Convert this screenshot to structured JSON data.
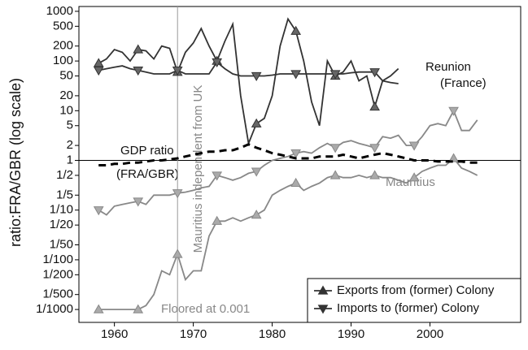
{
  "chart_data": {
    "type": "line",
    "y_label": "ratio:FRA/GBR (log scale)",
    "log_y": true,
    "x": [
      1958,
      1959,
      1960,
      1961,
      1962,
      1963,
      1964,
      1965,
      1966,
      1967,
      1968,
      1969,
      1970,
      1971,
      1972,
      1973,
      1974,
      1975,
      1976,
      1977,
      1978,
      1979,
      1980,
      1981,
      1982,
      1983,
      1984,
      1985,
      1986,
      1987,
      1988,
      1989,
      1990,
      1991,
      1992,
      1993,
      1994,
      1995,
      1996,
      1997,
      1998,
      1999,
      2000,
      2001,
      2002,
      2003,
      2004,
      2005,
      2006
    ],
    "series": [
      {
        "color": "#333333",
        "marker": "triangle-up",
        "dash": false,
        "values": [
          90,
          110,
          170,
          150,
          100,
          170,
          160,
          110,
          200,
          180,
          60,
          150,
          230,
          450,
          200,
          100,
          250,
          550,
          20,
          2.2,
          5.5,
          7,
          20,
          200,
          700,
          400,
          100,
          15,
          5,
          100,
          50,
          60,
          100,
          40,
          50,
          12,
          40,
          50,
          70,
          null,
          null,
          null,
          null,
          null,
          null,
          null,
          null,
          null,
          null
        ]
      },
      {
        "color": "#333333",
        "marker": "triangle-down",
        "dash": false,
        "values": [
          65,
          70,
          75,
          80,
          70,
          65,
          60,
          55,
          55,
          55,
          65,
          55,
          55,
          55,
          55,
          95,
          70,
          55,
          50,
          50,
          50,
          50,
          52,
          55,
          55,
          55,
          55,
          55,
          55,
          55,
          55,
          55,
          58,
          60,
          60,
          60,
          40,
          37,
          35,
          null,
          null,
          null,
          null,
          null,
          null,
          null,
          null,
          null,
          null
        ]
      },
      {
        "color": "#888888",
        "marker": "triangle-down",
        "dash": false,
        "values": [
          0.1,
          0.08,
          0.12,
          0.13,
          0.14,
          0.15,
          0.13,
          0.2,
          0.2,
          0.2,
          0.22,
          0.23,
          0.25,
          0.28,
          0.3,
          0.5,
          0.45,
          0.4,
          0.45,
          0.55,
          0.6,
          0.8,
          1,
          1.1,
          1.2,
          1.4,
          1.5,
          1.4,
          1.8,
          2.2,
          1.8,
          2.3,
          2.5,
          2.2,
          2,
          1.8,
          3,
          2.8,
          3.2,
          2,
          2,
          3,
          5,
          5.5,
          5,
          10,
          4,
          4,
          6.5
        ]
      },
      {
        "color": "#888888",
        "marker": "triangle-up",
        "dash": false,
        "values": [
          0.001,
          0.001,
          0.001,
          0.001,
          0.001,
          0.001,
          0.0012,
          0.002,
          0.006,
          0.005,
          0.013,
          0.004,
          0.006,
          0.006,
          0.03,
          0.06,
          0.06,
          0.07,
          0.06,
          0.07,
          0.08,
          0.1,
          0.2,
          0.25,
          0.3,
          0.35,
          0.25,
          0.3,
          0.35,
          0.45,
          0.5,
          0.45,
          0.45,
          0.5,
          0.45,
          0.5,
          0.45,
          0.45,
          0.4,
          0.35,
          0.45,
          0.6,
          0.7,
          0.8,
          0.8,
          1.1,
          0.7,
          0.6,
          0.5
        ]
      },
      {
        "color": "#000000",
        "marker": "none",
        "dash": true,
        "values": [
          0.8,
          0.8,
          0.85,
          0.85,
          0.9,
          0.9,
          0.95,
          1,
          1,
          1.05,
          1.1,
          1.2,
          1.3,
          1.4,
          1.5,
          1.5,
          1.6,
          1.6,
          1.8,
          2.1,
          1.8,
          1.6,
          1.4,
          1.3,
          1.2,
          1.1,
          1.1,
          1.1,
          1.2,
          1.2,
          1.2,
          1.3,
          1.2,
          1.1,
          1.2,
          1.3,
          1.4,
          1.3,
          1.2,
          1.1,
          1.0,
          1.0,
          1.0,
          0.95,
          0.95,
          0.95,
          0.95,
          0.9,
          0.9
        ]
      }
    ],
    "xlim": [
      1955.5,
      2011.5
    ],
    "xticks": [
      1960,
      1970,
      1980,
      1990,
      2000
    ],
    "ylim": [
      0.00055,
      1250
    ],
    "yticks": [
      1000,
      500,
      200,
      100,
      50,
      20,
      10,
      5,
      2,
      1,
      {
        "value": 0.5,
        "label": "1/2"
      },
      {
        "value": 0.2,
        "label": "1/5"
      },
      {
        "value": 0.1,
        "label": "1/10"
      },
      {
        "value": 0.05,
        "label": "1/20"
      },
      {
        "value": 0.02,
        "label": "1/50"
      },
      {
        "value": 0.01,
        "label": "1/100"
      },
      {
        "value": 0.005,
        "label": "1/200"
      },
      {
        "value": 0.002,
        "label": "1/500"
      },
      {
        "value": 0.001,
        "label": "1/1000"
      }
    ],
    "reference_lines": {
      "x": 1968,
      "y": 1
    },
    "annotations": [
      "Reunion",
      "(France)",
      "GDP ratio",
      "(FRA/GBR)",
      "Mauritius",
      "Mauritius independent from UK",
      "Floored at 0.001"
    ],
    "legend": {
      "position": "lower right",
      "entries": [
        {
          "label": "Exports from (former) Colony",
          "marker": "triangle-up"
        },
        {
          "label": "Imports to (former) Colony",
          "marker": "triangle-down"
        }
      ]
    }
  }
}
